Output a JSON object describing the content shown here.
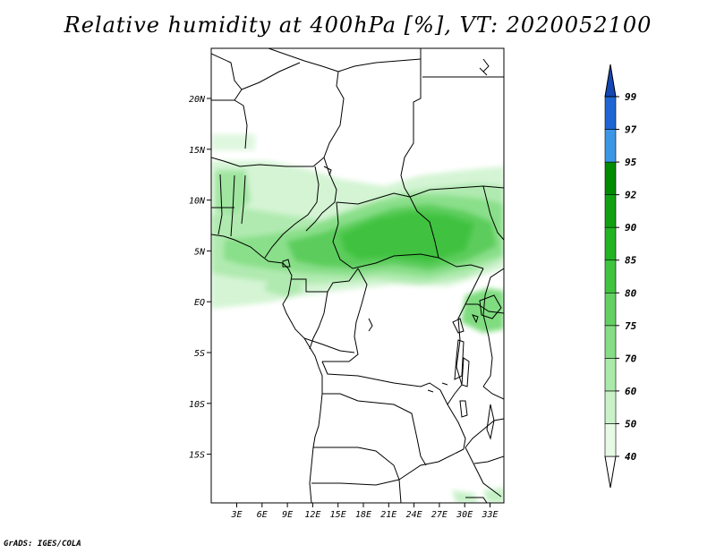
{
  "title": "Relative humidity at 400hPa [%], VT: 2020052100",
  "credit": "GrADS: IGES/COLA",
  "map": {
    "lat_ticks": [
      "20N",
      "15N",
      "10N",
      "5N",
      "EQ",
      "5S",
      "10S",
      "15S"
    ],
    "lon_ticks": [
      "3E",
      "6E",
      "9E",
      "12E",
      "15E",
      "18E",
      "21E",
      "24E",
      "27E",
      "30E",
      "33E"
    ]
  },
  "colorbar": {
    "labels": [
      "40",
      "50",
      "60",
      "70",
      "75",
      "80",
      "85",
      "90",
      "92",
      "95",
      "97",
      "99"
    ],
    "colors": [
      "#ffffff",
      "#e6fae6",
      "#c9f2c9",
      "#a9e9a9",
      "#86dd86",
      "#64d064",
      "#40c440",
      "#22b322",
      "#11a011",
      "#008b00",
      "#3c96e6",
      "#1f66d4",
      "#1446b4"
    ]
  }
}
